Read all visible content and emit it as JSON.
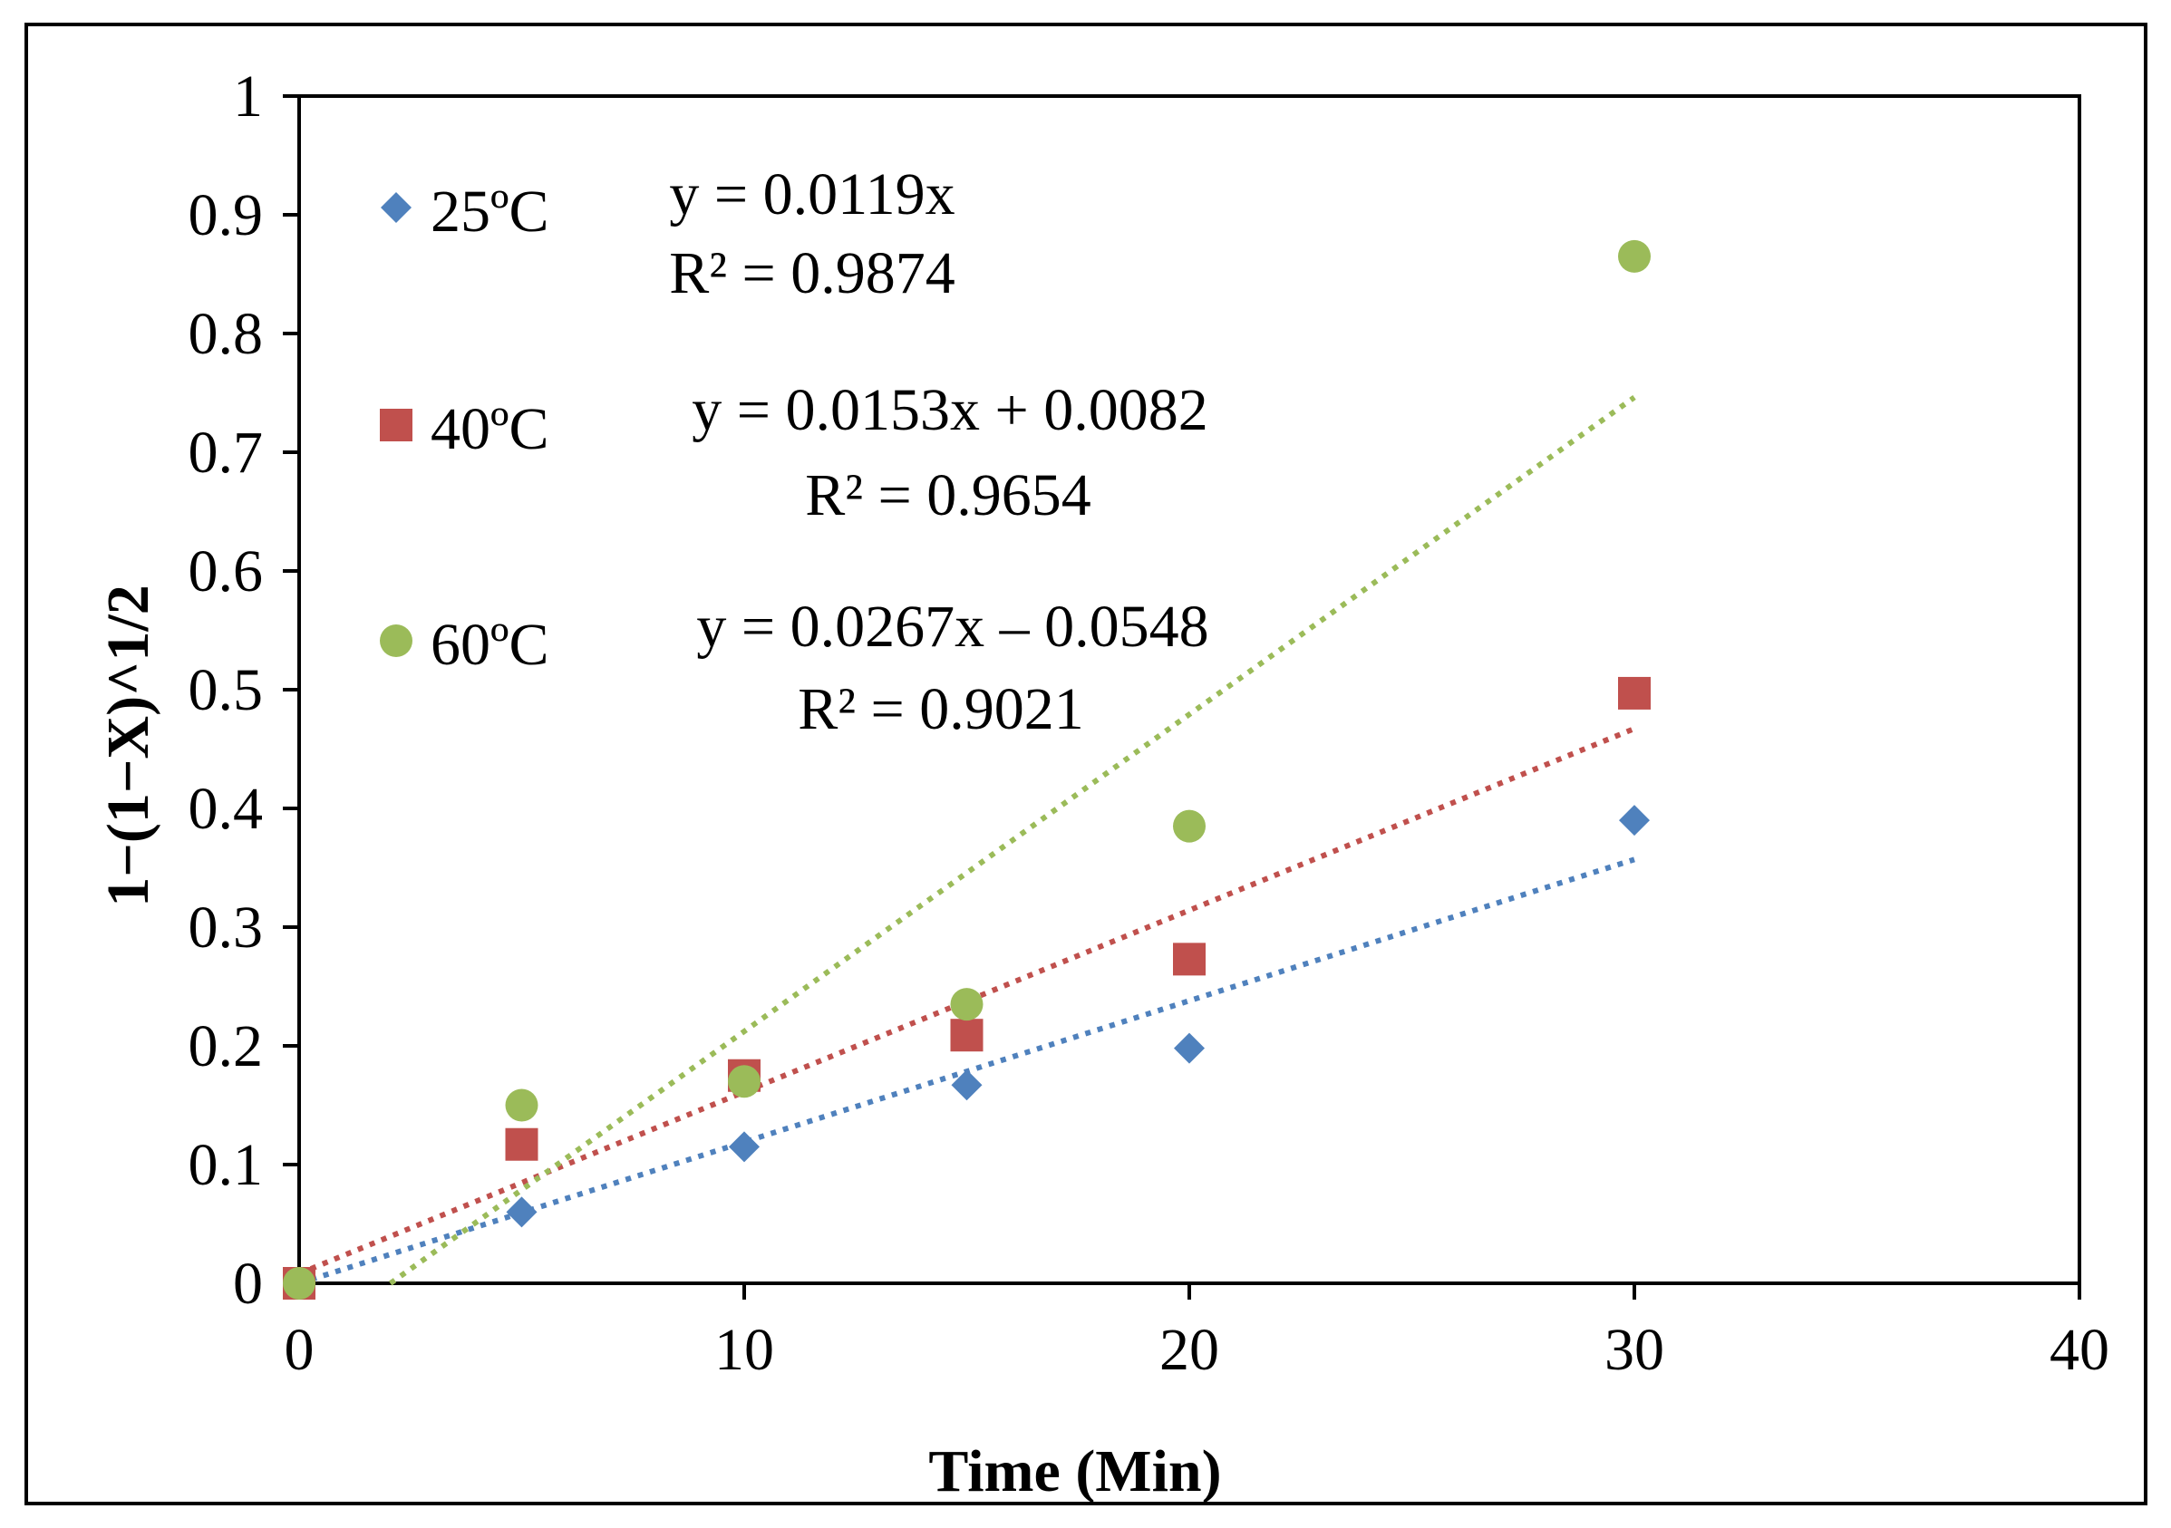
{
  "chart_data": {
    "type": "scatter",
    "title": "",
    "xlabel": "Time (Min)",
    "ylabel": "1−(1−X)^1/2",
    "xlim": [
      0,
      40
    ],
    "ylim": [
      0,
      1
    ],
    "x_ticks": [
      0,
      10,
      20,
      30,
      40
    ],
    "y_ticks": [
      0,
      0.1,
      0.2,
      0.3,
      0.4,
      0.5,
      0.6,
      0.7,
      0.8,
      0.9,
      1
    ],
    "x_tick_labels": [
      "0",
      "10",
      "20",
      "30",
      "40"
    ],
    "y_tick_labels": [
      "0",
      "0.1",
      "0.2",
      "0.3",
      "0.4",
      "0.5",
      "0.6",
      "0.7",
      "0.8",
      "0.9",
      "1"
    ],
    "grid": false,
    "legend_position": "top-left",
    "series": [
      {
        "name": "25ºC",
        "marker": "diamond",
        "color": "#4F81BD",
        "x": [
          0,
          5,
          10,
          15,
          20,
          30
        ],
        "y": [
          0,
          0.06,
          0.115,
          0.167,
          0.198,
          0.39
        ],
        "trendline": {
          "slope": 0.0119,
          "intercept": 0,
          "x_range": [
            0,
            30
          ]
        },
        "equation": "y = 0.0119x",
        "r2": "R² = 0.9874"
      },
      {
        "name": "40ºC",
        "marker": "square",
        "color": "#C0504D",
        "x": [
          0,
          5,
          10,
          15,
          20,
          30
        ],
        "y": [
          0,
          0.117,
          0.175,
          0.209,
          0.273,
          0.497
        ],
        "trendline": {
          "slope": 0.0153,
          "intercept": 0.0082,
          "x_range": [
            0,
            30
          ]
        },
        "equation": "y = 0.0153x + 0.0082",
        "r2": "R² = 0.9654"
      },
      {
        "name": "60ºC",
        "marker": "circle",
        "color": "#9BBB59",
        "x": [
          0,
          5,
          10,
          15,
          20,
          30
        ],
        "y": [
          0,
          0.15,
          0.17,
          0.235,
          0.385,
          0.865
        ],
        "trendline": {
          "slope": 0.0267,
          "intercept": -0.0548,
          "x_range": [
            2.05,
            30
          ]
        },
        "equation": "y = 0.0267x – 0.0548",
        "r2": "R² = 0.9021"
      }
    ]
  }
}
